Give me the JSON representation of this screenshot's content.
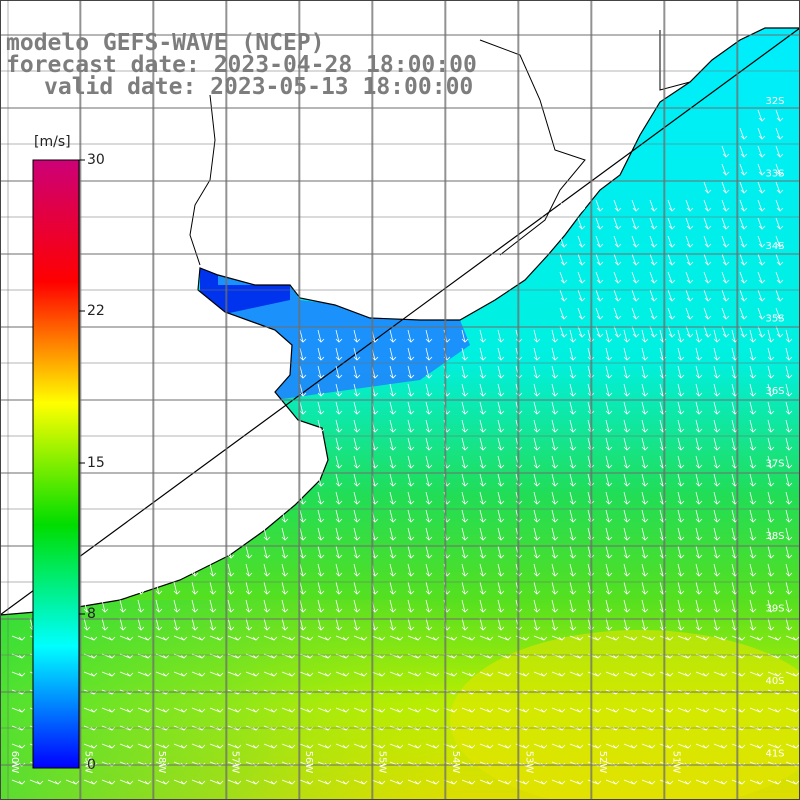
{
  "title": {
    "line1": "modelo GEFS-WAVE (NCEP)",
    "line2": "forecast date: 2023-04-28 18:00:00",
    "line3": "valid date: 2023-05-13 18:00:00"
  },
  "colorbar": {
    "unit": "[m/s]",
    "ticks": [
      "30",
      "22",
      "15",
      "8",
      "0"
    ],
    "stops": [
      "#0000ff",
      "#00ffff",
      "#00dd00",
      "#ffff00",
      "#ff0000",
      "#cc0077"
    ]
  },
  "map": {
    "lat_labels": [
      "32S",
      "33S",
      "34S",
      "35S",
      "36S",
      "37S",
      "38S",
      "39S",
      "40S",
      "41S"
    ],
    "lon_labels": [
      "60W",
      "59W",
      "58W",
      "57W",
      "56W",
      "55W",
      "54W",
      "53W",
      "52W",
      "51W"
    ],
    "land_color": "#ffffff",
    "coast_color": "#000000",
    "grid_color": "#6e6e6e",
    "arrow_color": "#ffffff"
  }
}
